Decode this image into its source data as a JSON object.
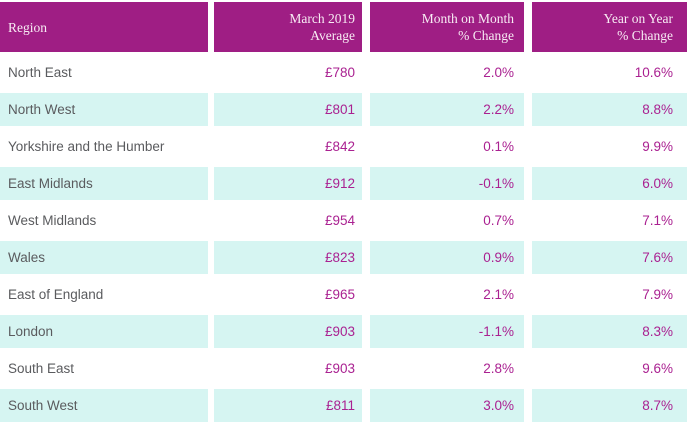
{
  "colors": {
    "header_bg": "#9f1e84",
    "row_alt_bg": "#d6f5f2",
    "value_text": "#aa2191",
    "region_text": "#5a5b5e",
    "header_text": "#f8ecf4"
  },
  "chart_data": {
    "type": "table",
    "legend_position": "none",
    "grid": false,
    "columns": [
      "Region",
      "March 2019\nAverage",
      "Month on Month\n% Change",
      "Year on Year\n% Change"
    ],
    "rows": [
      {
        "region": "North East",
        "average": "£780",
        "mom": "2.0%",
        "yoy": "10.6%"
      },
      {
        "region": "North West",
        "average": "£801",
        "mom": "2.2%",
        "yoy": "8.8%"
      },
      {
        "region": "Yorkshire and the Humber",
        "average": "£842",
        "mom": "0.1%",
        "yoy": "9.9%"
      },
      {
        "region": "East Midlands",
        "average": "£912",
        "mom": "-0.1%",
        "yoy": "6.0%"
      },
      {
        "region": "West Midlands",
        "average": "£954",
        "mom": "0.7%",
        "yoy": "7.1%"
      },
      {
        "region": "Wales",
        "average": "£823",
        "mom": "0.9%",
        "yoy": "7.6%"
      },
      {
        "region": "East of England",
        "average": "£965",
        "mom": "2.1%",
        "yoy": "7.9%"
      },
      {
        "region": "London",
        "average": "£903",
        "mom": "-1.1%",
        "yoy": "8.3%"
      },
      {
        "region": "South East",
        "average": "£903",
        "mom": "2.8%",
        "yoy": "9.6%"
      },
      {
        "region": "South West",
        "average": "£811",
        "mom": "3.0%",
        "yoy": "8.7%"
      }
    ]
  }
}
